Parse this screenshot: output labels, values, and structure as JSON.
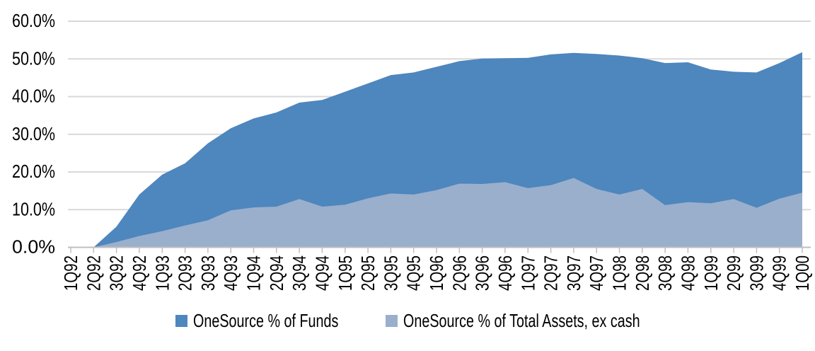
{
  "chart_data": {
    "type": "area",
    "overlap": true,
    "title": "",
    "xlabel": "",
    "ylabel": "",
    "categories": [
      "1Q92",
      "2Q92",
      "3Q92",
      "4Q92",
      "1Q93",
      "2Q93",
      "3Q93",
      "4Q93",
      "1Q94",
      "2Q94",
      "3Q94",
      "4Q94",
      "1Q95",
      "2Q95",
      "3Q95",
      "4Q95",
      "1Q96",
      "2Q96",
      "3Q96",
      "4Q96",
      "1Q97",
      "2Q97",
      "3Q97",
      "4Q97",
      "1Q98",
      "2Q98",
      "3Q98",
      "4Q98",
      "1Q99",
      "2Q99",
      "3Q99",
      "4Q99",
      "1Q00"
    ],
    "series": [
      {
        "name": "OneSource % of Funds",
        "color": "#4E86BE",
        "values": [
          0.0,
          0.0,
          5.5,
          14.0,
          19.3,
          22.3,
          27.6,
          31.6,
          34.2,
          35.8,
          38.4,
          39.1,
          41.3,
          43.5,
          45.7,
          46.4,
          47.9,
          49.4,
          50.1,
          50.2,
          50.3,
          51.2,
          51.6,
          51.3,
          50.9,
          50.2,
          48.9,
          49.1,
          47.2,
          46.6,
          46.4,
          48.9,
          51.8
        ]
      },
      {
        "name": "OneSource % of Total Assets, ex cash",
        "color": "#9AAFCC",
        "values": [
          0.0,
          0.0,
          1.4,
          3.0,
          4.3,
          5.8,
          7.2,
          9.8,
          10.6,
          10.8,
          12.8,
          10.8,
          11.3,
          13.0,
          14.3,
          14.0,
          15.2,
          16.9,
          16.8,
          17.3,
          15.7,
          16.5,
          18.4,
          15.5,
          14.0,
          15.5,
          11.2,
          12.0,
          11.7,
          12.8,
          10.5,
          12.9,
          14.5
        ]
      }
    ],
    "y_axis": {
      "min": 0,
      "max": 60,
      "step": 10,
      "tick_labels": [
        "0.0%",
        "10.0%",
        "20.0%",
        "30.0%",
        "40.0%",
        "50.0%",
        "60.0%"
      ]
    },
    "grid": true,
    "legend_position": "bottom",
    "colors": {
      "gridline": "#D9D9D9",
      "axis_line": "#BFBFBF",
      "text": "#000000",
      "background": "#FFFFFF"
    }
  }
}
